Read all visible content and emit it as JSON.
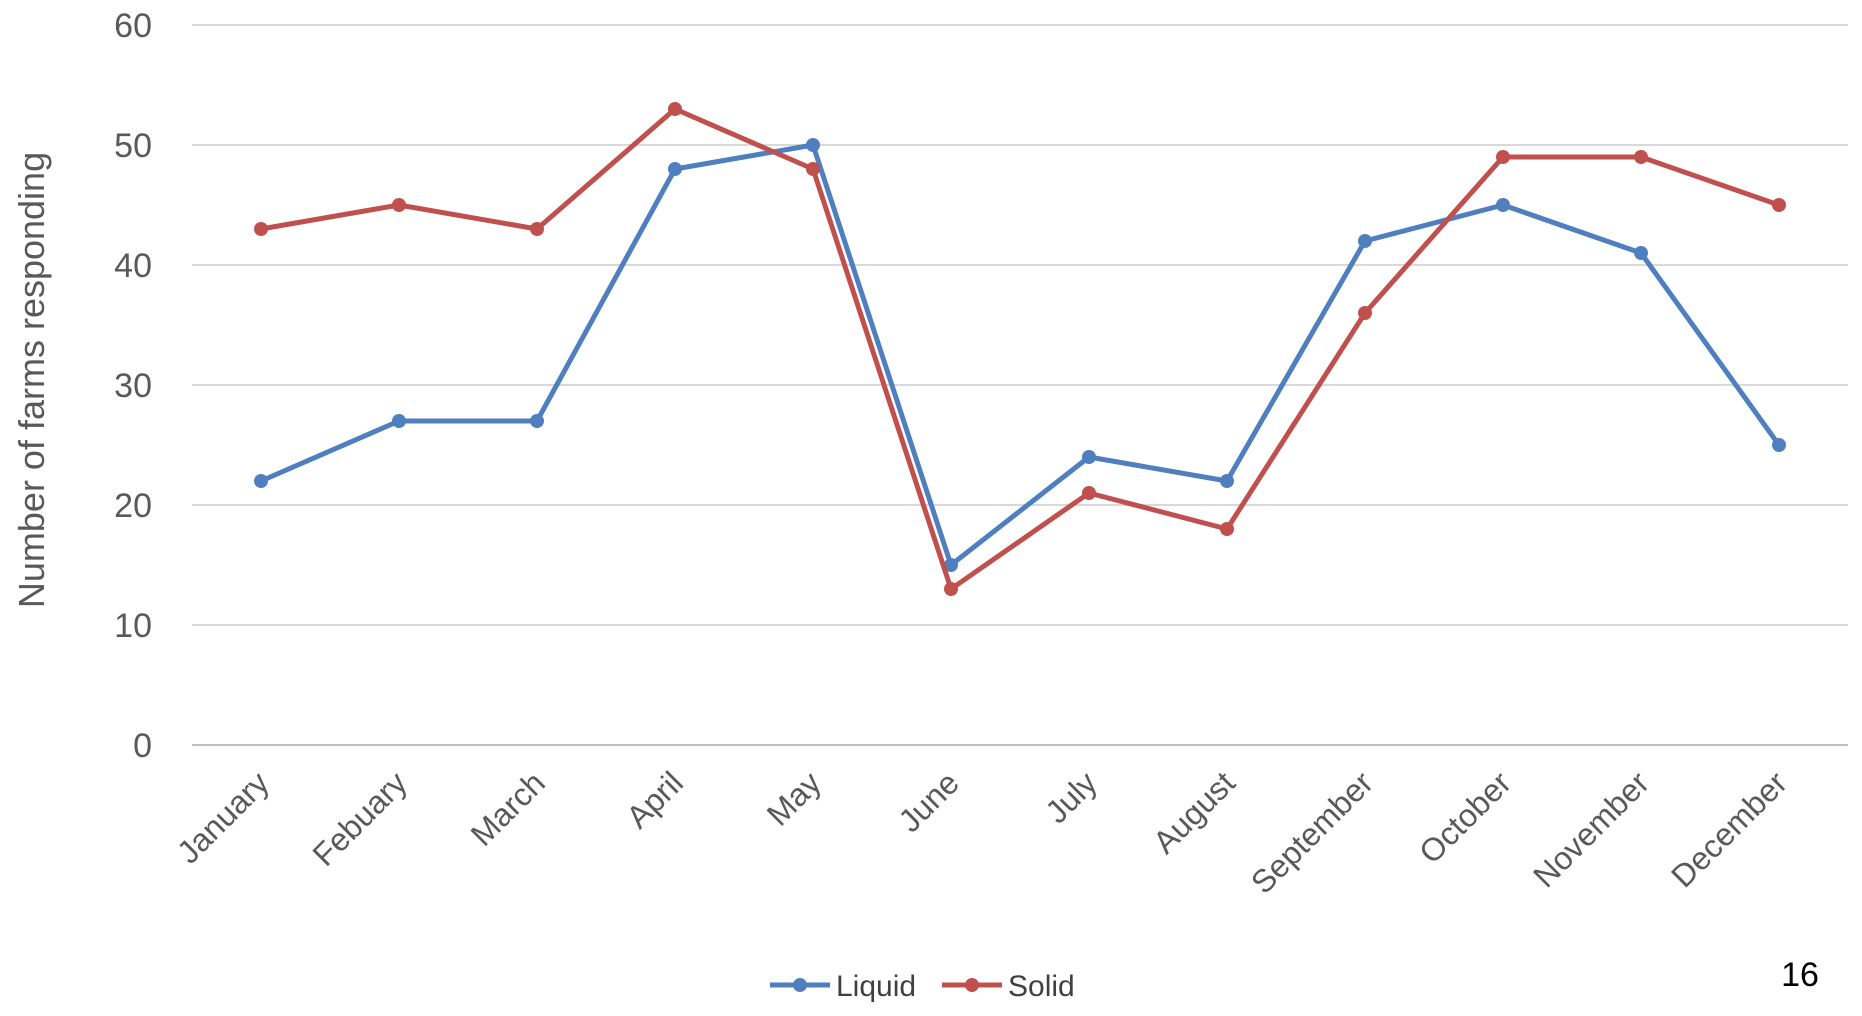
{
  "page_number": "16",
  "chart_data": {
    "type": "line",
    "title": "",
    "xlabel": "",
    "ylabel": "Number of farms responding",
    "ylim": [
      0,
      60
    ],
    "yticks": [
      0,
      10,
      20,
      30,
      40,
      50,
      60
    ],
    "grid": true,
    "legend_position": "bottom",
    "categories": [
      "January",
      "Febuary",
      "March",
      "April",
      "May",
      "June",
      "July",
      "August",
      "September",
      "October",
      "November",
      "December"
    ],
    "series": [
      {
        "name": "Liquid",
        "color": "#4f7fbf",
        "values": [
          22,
          27,
          27,
          48,
          50,
          15,
          24,
          22,
          42,
          45,
          41,
          25
        ]
      },
      {
        "name": "Solid",
        "color": "#c0504d",
        "values": [
          43,
          45,
          43,
          53,
          48,
          13,
          21,
          18,
          36,
          49,
          49,
          45
        ]
      }
    ]
  }
}
